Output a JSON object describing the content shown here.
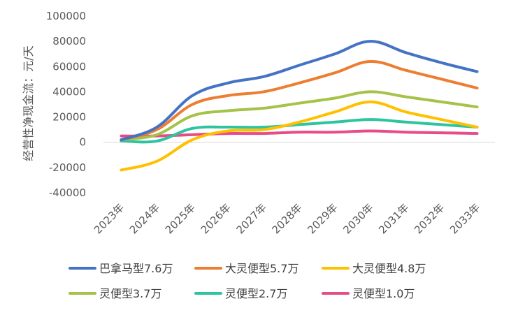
{
  "chart_data": {
    "type": "line",
    "title": "",
    "xlabel": "",
    "ylabel": "经营性净现金流：元/天",
    "ylim": [
      -40000,
      100000
    ],
    "yticks": [
      -40000,
      -20000,
      0,
      20000,
      40000,
      60000,
      80000,
      100000
    ],
    "categories": [
      "2023年",
      "2024年",
      "2025年",
      "2026年",
      "2027年",
      "2028年",
      "2029年",
      "2030年",
      "2031年",
      "2032年",
      "2033年"
    ],
    "grid": false,
    "legend_position": "bottom",
    "smooth": true,
    "series": [
      {
        "name": "巴拿马型7.6万",
        "color": "#4472C4",
        "values": [
          2000,
          12000,
          37000,
          47000,
          52000,
          61000,
          70000,
          80000,
          71000,
          63000,
          56000
        ]
      },
      {
        "name": "大灵便型5.7万",
        "color": "#ED7D31",
        "values": [
          2000,
          10000,
          30000,
          37000,
          40000,
          47000,
          55000,
          64000,
          57000,
          50000,
          43000
        ]
      },
      {
        "name": "大灵便型4.8万",
        "color": "#FFC000",
        "values": [
          -22000,
          -15000,
          2000,
          9000,
          10000,
          16000,
          24000,
          32000,
          24000,
          18000,
          12000
        ]
      },
      {
        "name": "灵便型3.7万",
        "color": "#A5C249",
        "values": [
          2000,
          6000,
          21000,
          25000,
          27000,
          31000,
          35000,
          40000,
          36000,
          32000,
          28000
        ]
      },
      {
        "name": "灵便型2.7万",
        "color": "#2EC4A0",
        "values": [
          1000,
          1000,
          11000,
          12000,
          12000,
          14000,
          16000,
          18000,
          16000,
          14000,
          12000
        ]
      },
      {
        "name": "灵便型1.0万",
        "color": "#E84C88",
        "values": [
          5000,
          5000,
          6000,
          7000,
          7000,
          8000,
          8000,
          9000,
          8000,
          7500,
          7000
        ]
      }
    ]
  }
}
